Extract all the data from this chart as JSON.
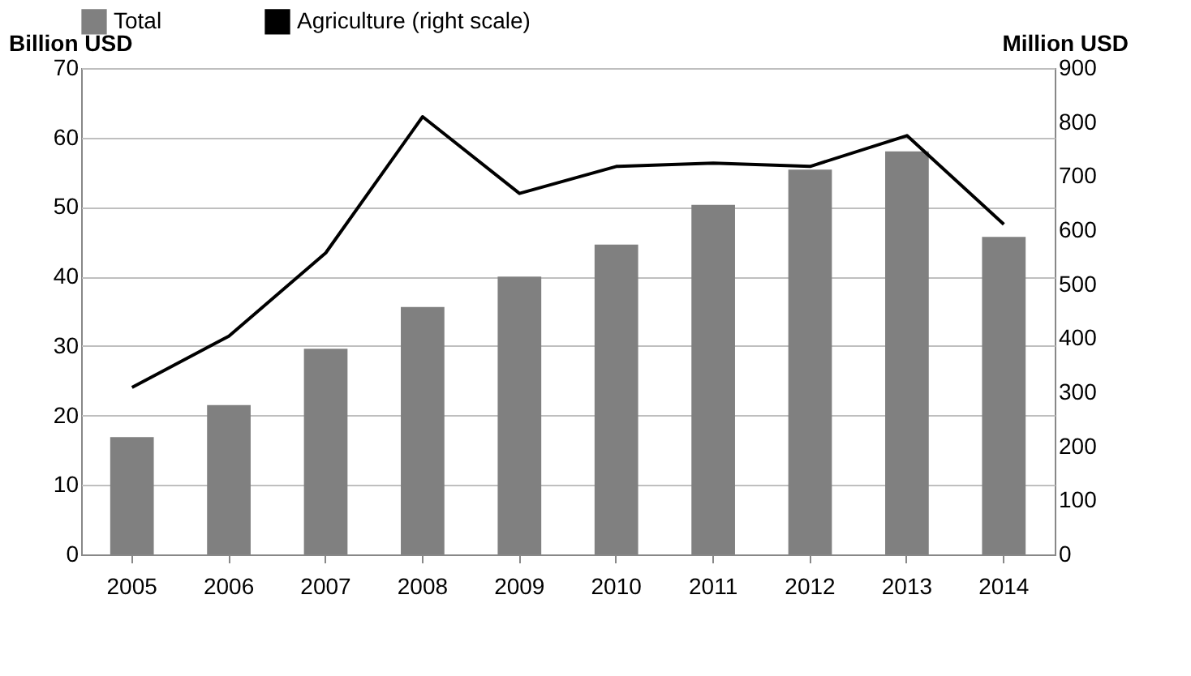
{
  "chart_data": {
    "type": "bar",
    "categories": [
      "2005",
      "2006",
      "2007",
      "2008",
      "2009",
      "2010",
      "2011",
      "2012",
      "2013",
      "2014"
    ],
    "series": [
      {
        "name": "Total",
        "color": "#808080",
        "values": [
          16.9,
          21.5,
          29.6,
          35.6,
          40.0,
          44.6,
          50.3,
          55.4,
          58.0,
          45.7
        ]
      },
      {
        "name": "Agriculture (right scale)",
        "type": "line",
        "axis": "y2",
        "color": "#000000",
        "values": [
          309,
          404,
          558,
          810,
          668,
          718,
          724,
          718,
          775,
          611
        ]
      }
    ],
    "ylabel": "Billion USD",
    "y2label": "Million USD",
    "ylim": [
      0,
      70
    ],
    "yticks": [
      0,
      10,
      20,
      30,
      40,
      50,
      60,
      70
    ],
    "y2lim": [
      0,
      900
    ],
    "y2ticks": [
      0,
      100,
      200,
      300,
      400,
      500,
      600,
      700,
      800,
      900
    ],
    "grid": "y",
    "legend": "top",
    "marker": "none",
    "line_style": "solid"
  }
}
